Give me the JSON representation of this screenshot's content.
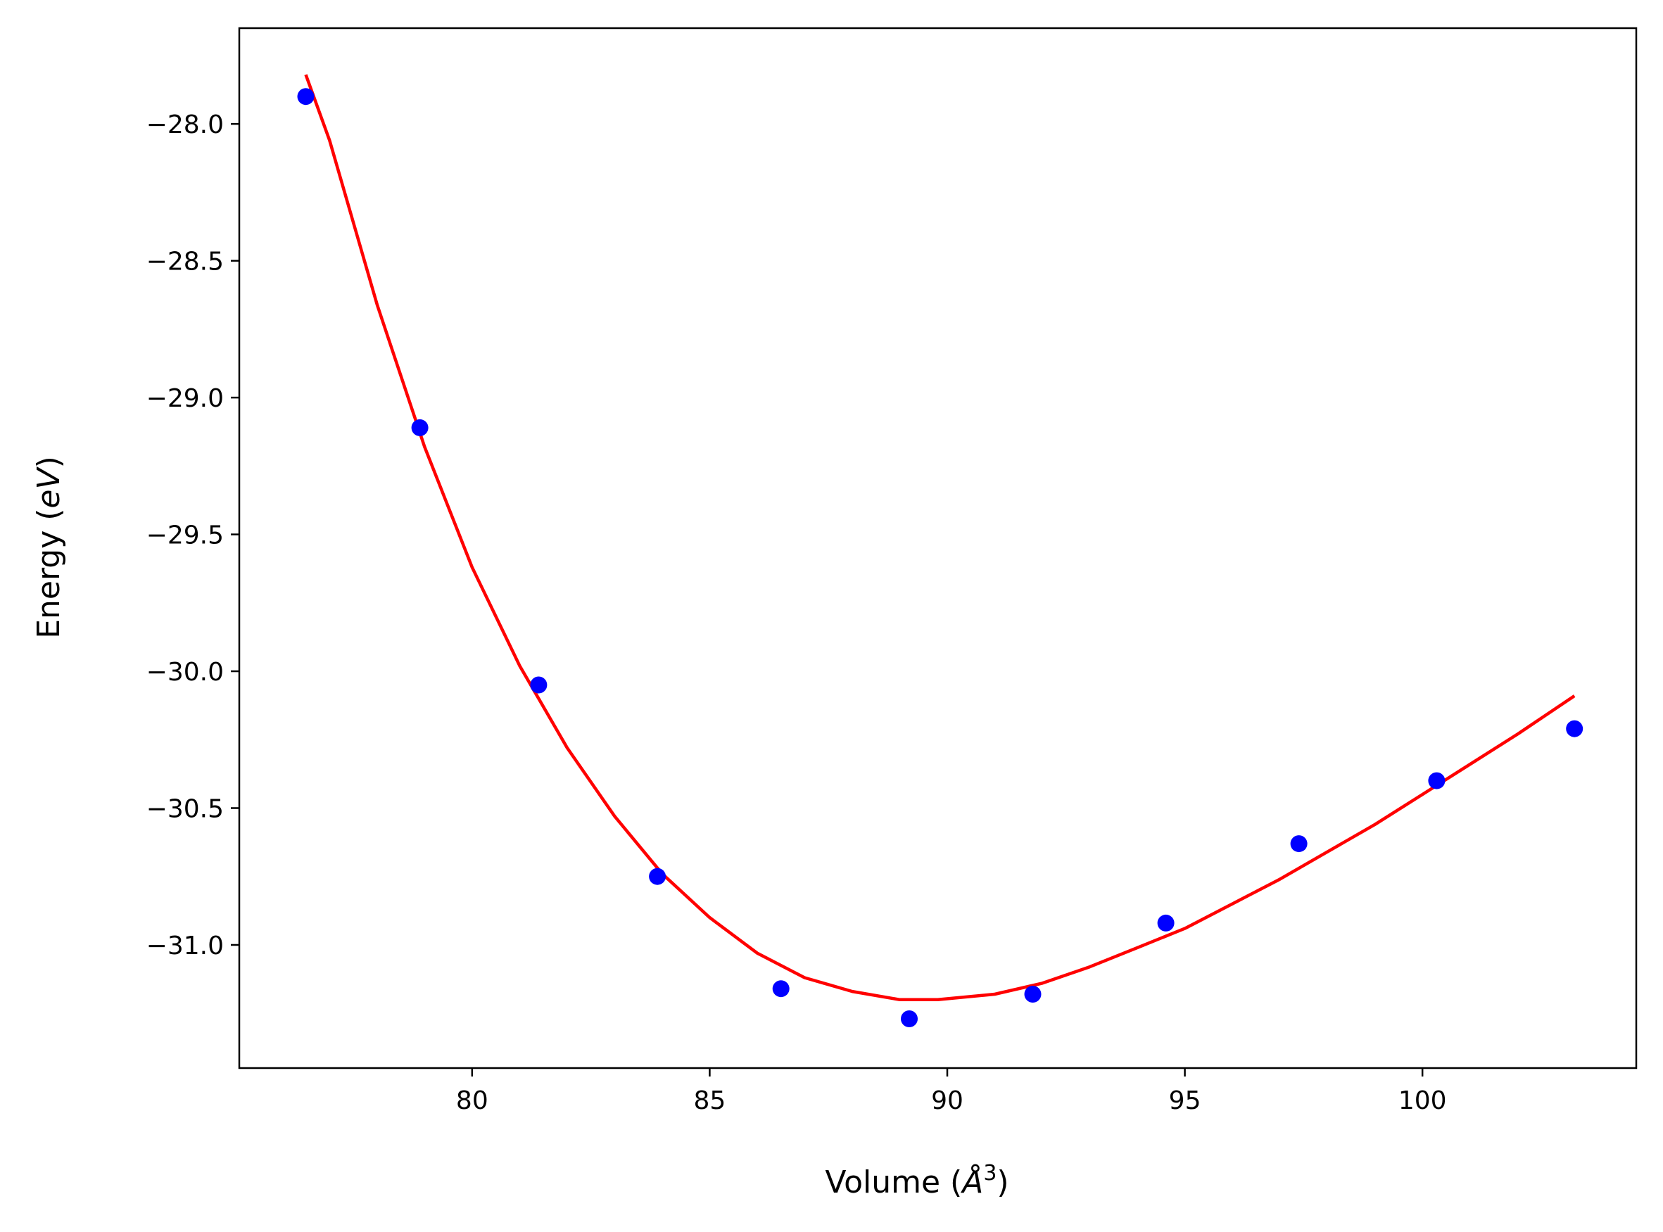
{
  "chart_data": {
    "type": "scatter",
    "xlabel": "Volume (Å³)",
    "xlabel_parts": {
      "text": "Volume (",
      "symbol": "Å",
      "sup": "3",
      "close": ")"
    },
    "ylabel": "Energy (eV)",
    "ylabel_parts": {
      "text": "Energy (",
      "symbol": "eV",
      "close": ")"
    },
    "xlim": [
      75.1,
      104.5
    ],
    "ylim": [
      -31.45,
      -27.65
    ],
    "xticks": [
      80,
      85,
      90,
      95,
      100
    ],
    "xtick_labels": [
      "80",
      "85",
      "90",
      "95",
      "100"
    ],
    "yticks": [
      -28.0,
      -28.5,
      -29.0,
      -29.5,
      -30.0,
      -30.5,
      -31.0
    ],
    "ytick_labels": [
      "−28.0",
      "−28.5",
      "−29.0",
      "−29.5",
      "−30.0",
      "−30.5",
      "−31.0"
    ],
    "grid": false,
    "legend": "none",
    "series": [
      {
        "kind": "scatter",
        "color": "#0000ff",
        "x": [
          76.5,
          78.9,
          81.4,
          83.9,
          86.5,
          89.2,
          91.8,
          94.6,
          97.4,
          100.3,
          103.2
        ],
        "y": [
          -27.9,
          -29.11,
          -30.05,
          -30.75,
          -31.16,
          -31.27,
          -31.18,
          -30.92,
          -30.63,
          -30.4,
          -30.21
        ]
      },
      {
        "kind": "line",
        "color": "#ff0000",
        "x": [
          76.5,
          77.0,
          78.0,
          79.0,
          80.0,
          81.0,
          82.0,
          83.0,
          84.0,
          85.0,
          86.0,
          87.0,
          88.0,
          89.0,
          89.8,
          91.0,
          92.0,
          93.0,
          94.0,
          95.0,
          96.0,
          97.0,
          98.0,
          99.0,
          100.0,
          101.0,
          102.0,
          103.2
        ],
        "y": [
          -27.82,
          -28.06,
          -28.66,
          -29.18,
          -29.62,
          -29.98,
          -30.28,
          -30.53,
          -30.74,
          -30.9,
          -31.03,
          -31.12,
          -31.17,
          -31.2,
          -31.2,
          -31.18,
          -31.14,
          -31.08,
          -31.01,
          -30.94,
          -30.85,
          -30.76,
          -30.66,
          -30.56,
          -30.45,
          -30.34,
          -30.23,
          -30.09
        ]
      }
    ]
  }
}
